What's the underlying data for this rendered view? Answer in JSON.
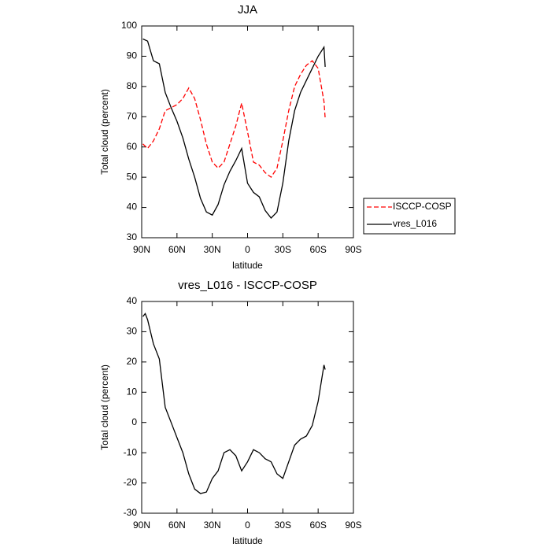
{
  "chart_data": [
    {
      "type": "line",
      "title": "JJA",
      "xlabel": "latitude",
      "ylabel": "Total cloud (percent)",
      "x": [
        89,
        85,
        80,
        75,
        70,
        65,
        60,
        55,
        50,
        45,
        40,
        35,
        30,
        25,
        20,
        15,
        10,
        5,
        0,
        -5,
        -10,
        -15,
        -20,
        -25,
        -30,
        -35,
        -40,
        -45,
        -50,
        -55,
        -60,
        -65,
        -66
      ],
      "series": [
        {
          "name": "ISCCP-COSP",
          "color": "#ff0000",
          "dash": true,
          "values": [
            61,
            59.5,
            62,
            66,
            72,
            73,
            74,
            76,
            79.5,
            76,
            69,
            61,
            55,
            53,
            55,
            61,
            67,
            74.5,
            65,
            55,
            54,
            51.5,
            50,
            53,
            62,
            72,
            80,
            84,
            87,
            88.5,
            86,
            75,
            69.5
          ]
        },
        {
          "name": "vres_L016",
          "color": "#000000",
          "dash": false,
          "values": [
            95.7,
            95,
            88.5,
            87.5,
            78,
            73,
            68.5,
            63,
            56,
            50,
            43,
            38.5,
            37.5,
            41,
            47.5,
            52,
            55.5,
            59.5,
            48,
            45,
            43.5,
            39,
            36.5,
            38.5,
            48,
            62,
            72,
            78,
            82,
            86,
            90,
            93,
            86.5
          ]
        }
      ],
      "xlim": [
        90,
        -90
      ],
      "xticks": [
        {
          "value": 90,
          "label": "90N"
        },
        {
          "value": 60,
          "label": "60N"
        },
        {
          "value": 30,
          "label": "30N"
        },
        0,
        {
          "value": -30,
          "label": "30S"
        },
        {
          "value": -60,
          "label": "60S"
        },
        {
          "value": -90,
          "label": "90S"
        }
      ],
      "ylim": [
        30,
        100
      ],
      "yticks": [
        30,
        40,
        50,
        60,
        70,
        80,
        90,
        100
      ],
      "legend": "right"
    },
    {
      "type": "line",
      "title": "vres_L016 - ISCCP-COSP",
      "xlabel": "latitude",
      "ylabel": "Total cloud (percent)",
      "x": [
        89,
        87,
        85,
        80,
        75,
        70,
        65,
        60,
        55,
        50,
        45,
        40,
        35,
        30,
        25,
        20,
        15,
        10,
        5,
        0,
        -5,
        -10,
        -15,
        -20,
        -25,
        -30,
        -35,
        -40,
        -45,
        -50,
        -55,
        -60,
        -65,
        -66
      ],
      "series": [
        {
          "color": "#000000",
          "dash": false,
          "values": [
            35,
            36,
            34,
            26,
            21,
            5,
            0,
            -5,
            -10,
            -17,
            -22,
            -23.5,
            -23,
            -18.5,
            -16,
            -10,
            -9,
            -11,
            -16,
            -13,
            -9,
            -10,
            -12,
            -13,
            -17,
            -18.5,
            -13,
            -7.5,
            -5.5,
            -4.5,
            -1,
            7,
            19,
            17.5
          ]
        }
      ],
      "xlim": [
        90,
        -90
      ],
      "xticks": [
        {
          "value": 90,
          "label": "90N"
        },
        {
          "value": 60,
          "label": "60N"
        },
        {
          "value": 30,
          "label": "30N"
        },
        0,
        {
          "value": -30,
          "label": "30S"
        },
        {
          "value": -60,
          "label": "60S"
        },
        {
          "value": -90,
          "label": "90S"
        }
      ],
      "ylim": [
        -30,
        40
      ],
      "yticks": [
        -30,
        -20,
        -10,
        0,
        10,
        20,
        30,
        40
      ]
    }
  ]
}
